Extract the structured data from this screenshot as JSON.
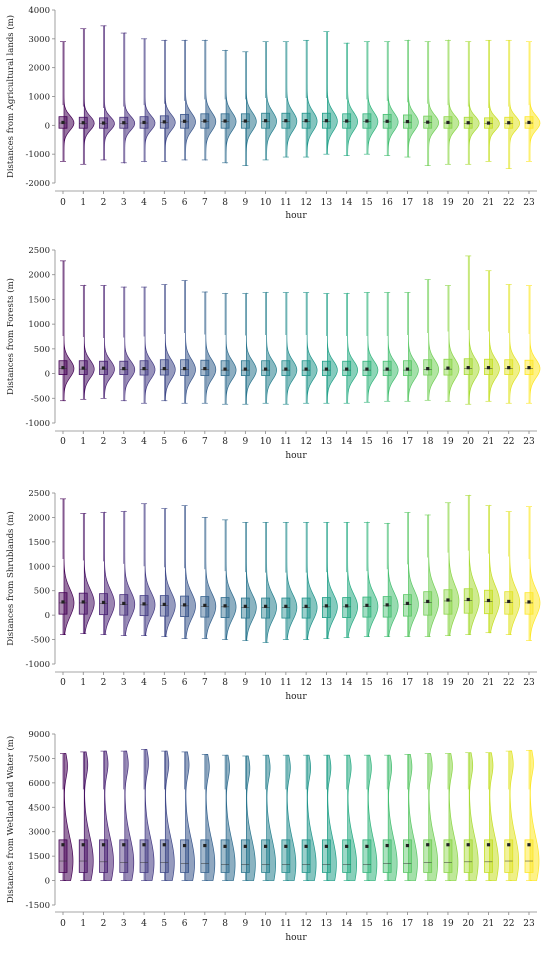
{
  "chart_data": [
    {
      "type": "violin-box",
      "xlabel": "hour",
      "ylabel": "Distances from  Agricultural lands (m)",
      "categories": [
        "0",
        "1",
        "2",
        "3",
        "4",
        "5",
        "6",
        "7",
        "8",
        "9",
        "10",
        "11",
        "12",
        "13",
        "14",
        "15",
        "16",
        "17",
        "18",
        "19",
        "20",
        "21",
        "22",
        "23"
      ],
      "ylim": [
        -2000,
        4000
      ],
      "yticks": [
        -2000,
        -1000,
        0,
        1000,
        2000,
        3000,
        4000
      ],
      "stats": {
        "min": [
          -1250,
          -1350,
          -1200,
          -1300,
          -1250,
          -1250,
          -1200,
          -1200,
          -1300,
          -1400,
          -1200,
          -1100,
          -1100,
          -1000,
          -1050,
          -1000,
          -1050,
          -1100,
          -1400,
          -1350,
          -1350,
          -1250,
          -1500,
          -1250
        ],
        "q1": [
          -100,
          -100,
          -100,
          -100,
          -100,
          -100,
          -100,
          -100,
          -100,
          -100,
          -100,
          -100,
          -100,
          -100,
          -100,
          -100,
          -100,
          -100,
          -100,
          -100,
          -100,
          -100,
          -100,
          -100
        ],
        "median": [
          80,
          70,
          60,
          70,
          80,
          100,
          120,
          130,
          130,
          130,
          140,
          140,
          140,
          140,
          130,
          130,
          120,
          110,
          90,
          80,
          70,
          60,
          70,
          80
        ],
        "mean": [
          100,
          90,
          80,
          90,
          100,
          120,
          140,
          150,
          150,
          150,
          160,
          160,
          160,
          160,
          150,
          150,
          140,
          130,
          110,
          100,
          90,
          80,
          90,
          100
        ],
        "q3": [
          300,
          280,
          260,
          280,
          300,
          330,
          380,
          400,
          400,
          400,
          420,
          420,
          420,
          420,
          400,
          400,
          380,
          360,
          320,
          300,
          280,
          260,
          280,
          300
        ],
        "max": [
          2900,
          3350,
          3450,
          3200,
          3000,
          2950,
          2950,
          2950,
          2600,
          2550,
          2900,
          2900,
          2950,
          3250,
          2850,
          2900,
          2900,
          2950,
          2900,
          2950,
          2900,
          2950,
          2950,
          2900
        ],
        "whisker_hi": [
          700,
          650,
          600,
          650,
          700,
          750,
          850,
          900,
          900,
          900,
          950,
          950,
          950,
          950,
          900,
          900,
          850,
          800,
          750,
          700,
          650,
          600,
          650,
          700
        ]
      }
    },
    {
      "type": "violin-box",
      "xlabel": "hour",
      "ylabel": "Distances from Forests (m)",
      "categories": [
        "0",
        "1",
        "2",
        "3",
        "4",
        "5",
        "6",
        "7",
        "8",
        "9",
        "10",
        "11",
        "12",
        "13",
        "14",
        "15",
        "16",
        "17",
        "18",
        "19",
        "20",
        "21",
        "22",
        "23"
      ],
      "ylim": [
        -1000,
        2500
      ],
      "yticks": [
        -1000,
        -500,
        0,
        500,
        1000,
        1500,
        2000,
        2500
      ],
      "stats": {
        "min": [
          -550,
          -520,
          -500,
          -550,
          -600,
          -550,
          -600,
          -600,
          -620,
          -620,
          -600,
          -620,
          -600,
          -600,
          -600,
          -580,
          -560,
          -560,
          -540,
          -560,
          -620,
          -560,
          -600,
          -600
        ],
        "q1": [
          -20,
          -20,
          -20,
          -20,
          -30,
          -30,
          -40,
          -40,
          -40,
          -40,
          -40,
          -40,
          -40,
          -40,
          -40,
          -40,
          -40,
          -40,
          -30,
          -30,
          -20,
          -20,
          -20,
          -20
        ],
        "median": [
          100,
          90,
          90,
          80,
          80,
          80,
          80,
          80,
          70,
          70,
          70,
          70,
          70,
          70,
          70,
          70,
          70,
          70,
          80,
          90,
          100,
          100,
          100,
          100
        ],
        "mean": [
          120,
          110,
          110,
          100,
          100,
          100,
          100,
          100,
          90,
          90,
          90,
          90,
          90,
          90,
          90,
          90,
          90,
          90,
          100,
          110,
          120,
          120,
          120,
          120
        ],
        "q3": [
          260,
          260,
          250,
          250,
          260,
          280,
          280,
          270,
          260,
          260,
          260,
          260,
          260,
          250,
          250,
          250,
          250,
          260,
          280,
          290,
          300,
          290,
          280,
          270
        ],
        "max": [
          2280,
          1780,
          1780,
          1750,
          1750,
          1800,
          1880,
          1650,
          1620,
          1620,
          1640,
          1640,
          1640,
          1620,
          1620,
          1640,
          1640,
          1640,
          1900,
          1780,
          2380,
          2080,
          1800,
          1780
        ],
        "whisker_hi": [
          760,
          740,
          720,
          730,
          750,
          800,
          820,
          790,
          780,
          770,
          780,
          780,
          780,
          760,
          760,
          760,
          760,
          780,
          820,
          850,
          880,
          850,
          820,
          800
        ]
      }
    },
    {
      "type": "violin-box",
      "xlabel": "hour",
      "ylabel": "Distances from Shrublands (m)",
      "categories": [
        "0",
        "1",
        "2",
        "3",
        "4",
        "5",
        "6",
        "7",
        "8",
        "9",
        "10",
        "11",
        "12",
        "13",
        "14",
        "15",
        "16",
        "17",
        "18",
        "19",
        "20",
        "21",
        "22",
        "23"
      ],
      "ylim": [
        -1000,
        2500
      ],
      "yticks": [
        -1000,
        -500,
        0,
        500,
        1000,
        1500,
        2000,
        2500
      ],
      "stats": {
        "min": [
          -400,
          -380,
          -400,
          -420,
          -420,
          -440,
          -480,
          -480,
          -500,
          -520,
          -560,
          -500,
          -500,
          -480,
          -460,
          -440,
          -440,
          -440,
          -440,
          -420,
          -400,
          -360,
          -400,
          -520
        ],
        "q1": [
          20,
          20,
          10,
          0,
          -10,
          -20,
          -30,
          -40,
          -50,
          -60,
          -60,
          -60,
          -60,
          -50,
          -50,
          -40,
          -40,
          -20,
          0,
          20,
          40,
          30,
          20,
          20
        ],
        "median": [
          250,
          250,
          240,
          220,
          210,
          200,
          190,
          180,
          170,
          160,
          160,
          160,
          160,
          170,
          170,
          180,
          190,
          220,
          260,
          290,
          300,
          280,
          260,
          250
        ],
        "mean": [
          270,
          270,
          260,
          240,
          230,
          220,
          210,
          200,
          190,
          180,
          180,
          180,
          180,
          190,
          190,
          200,
          210,
          240,
          280,
          310,
          320,
          300,
          280,
          270
        ],
        "q3": [
          460,
          450,
          440,
          420,
          400,
          400,
          390,
          380,
          360,
          350,
          350,
          350,
          350,
          360,
          360,
          370,
          380,
          420,
          480,
          520,
          540,
          510,
          480,
          460
        ],
        "max": [
          2380,
          2080,
          2100,
          2120,
          2280,
          2180,
          2240,
          2000,
          1950,
          1900,
          1900,
          1900,
          1900,
          1900,
          1900,
          1900,
          1880,
          2100,
          2050,
          2300,
          2450,
          2240,
          2120,
          2220
        ],
        "whisker_hi": [
          1150,
          1120,
          1100,
          1050,
          1000,
          980,
          960,
          940,
          900,
          880,
          870,
          870,
          870,
          880,
          880,
          900,
          940,
          1040,
          1180,
          1280,
          1320,
          1260,
          1200,
          1150
        ]
      }
    },
    {
      "type": "violin-box",
      "xlabel": "hour",
      "ylabel": "Distances from Wetland and Water (m)",
      "categories": [
        "0",
        "1",
        "2",
        "3",
        "4",
        "5",
        "6",
        "7",
        "8",
        "9",
        "10",
        "11",
        "12",
        "13",
        "14",
        "15",
        "16",
        "17",
        "18",
        "19",
        "20",
        "21",
        "22",
        "23"
      ],
      "ylim": [
        -1500,
        9000
      ],
      "yticks": [
        -1500,
        0,
        1500,
        3000,
        4500,
        6000,
        7500,
        9000
      ],
      "stats": {
        "min": [
          0,
          0,
          0,
          0,
          0,
          0,
          0,
          0,
          0,
          0,
          0,
          0,
          0,
          0,
          0,
          0,
          0,
          0,
          0,
          0,
          0,
          0,
          0,
          0
        ],
        "q1": [
          500,
          500,
          500,
          500,
          500,
          500,
          500,
          500,
          500,
          500,
          500,
          500,
          500,
          500,
          500,
          500,
          500,
          500,
          500,
          500,
          500,
          500,
          500,
          500
        ],
        "median": [
          1200,
          1200,
          1150,
          1100,
          1100,
          1100,
          1050,
          1050,
          1000,
          1000,
          1000,
          1000,
          1000,
          1000,
          1000,
          1000,
          1050,
          1050,
          1100,
          1100,
          1150,
          1150,
          1200,
          1200
        ],
        "mean": [
          2200,
          2200,
          2200,
          2200,
          2200,
          2200,
          2150,
          2150,
          2100,
          2100,
          2100,
          2100,
          2100,
          2100,
          2100,
          2100,
          2150,
          2150,
          2200,
          2200,
          2200,
          2200,
          2200,
          2200
        ],
        "q3": [
          2500,
          2500,
          2500,
          2500,
          2500,
          2500,
          2500,
          2500,
          2500,
          2500,
          2500,
          2500,
          2500,
          2500,
          2500,
          2500,
          2500,
          2500,
          2500,
          2500,
          2500,
          2500,
          2500,
          2500
        ],
        "max": [
          7800,
          7900,
          7950,
          7950,
          8050,
          7950,
          7900,
          7750,
          7700,
          7650,
          7700,
          7700,
          7700,
          7700,
          7700,
          7700,
          7700,
          7750,
          7800,
          7800,
          7850,
          7850,
          7950,
          8000
        ],
        "whisker_hi": [
          5600,
          5600,
          5600,
          5600,
          5600,
          5600,
          5600,
          5600,
          5600,
          5600,
          5600,
          5600,
          5600,
          5600,
          5600,
          5600,
          5600,
          5600,
          5600,
          5600,
          5600,
          5600,
          5600,
          5600
        ]
      }
    }
  ]
}
